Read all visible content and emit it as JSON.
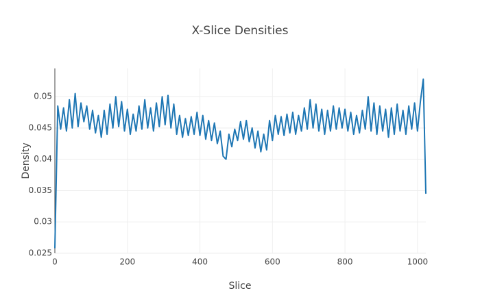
{
  "chart_data": {
    "type": "line",
    "title": "X-Slice Densities",
    "x_label": "Slice",
    "y_label": "Density",
    "x": [
      0,
      8,
      16,
      24,
      32,
      40,
      48,
      56,
      64,
      72,
      80,
      88,
      96,
      104,
      112,
      120,
      128,
      136,
      144,
      152,
      160,
      168,
      176,
      184,
      192,
      200,
      208,
      216,
      224,
      232,
      240,
      248,
      256,
      264,
      272,
      280,
      288,
      296,
      304,
      312,
      320,
      328,
      336,
      344,
      352,
      360,
      368,
      376,
      384,
      392,
      400,
      408,
      416,
      424,
      432,
      440,
      448,
      456,
      464,
      472,
      480,
      488,
      496,
      504,
      512,
      520,
      528,
      536,
      544,
      552,
      560,
      568,
      576,
      584,
      592,
      600,
      608,
      616,
      624,
      632,
      640,
      648,
      656,
      664,
      672,
      680,
      688,
      696,
      704,
      712,
      720,
      728,
      736,
      744,
      752,
      760,
      768,
      776,
      784,
      792,
      800,
      808,
      816,
      824,
      832,
      840,
      848,
      856,
      864,
      872,
      880,
      888,
      896,
      904,
      912,
      920,
      928,
      936,
      944,
      952,
      960,
      968,
      976,
      984,
      992,
      1000,
      1008,
      1016,
      1023
    ],
    "values": [
      0.0258,
      0.0485,
      0.0448,
      0.0482,
      0.0445,
      0.0495,
      0.045,
      0.0505,
      0.0452,
      0.049,
      0.046,
      0.0485,
      0.0448,
      0.0478,
      0.0442,
      0.047,
      0.0435,
      0.0478,
      0.044,
      0.0488,
      0.045,
      0.05,
      0.0452,
      0.0492,
      0.0445,
      0.048,
      0.044,
      0.0472,
      0.0445,
      0.0485,
      0.0448,
      0.0495,
      0.045,
      0.0482,
      0.0445,
      0.049,
      0.0452,
      0.05,
      0.0455,
      0.0502,
      0.045,
      0.0488,
      0.044,
      0.047,
      0.0435,
      0.0465,
      0.0438,
      0.0468,
      0.044,
      0.0475,
      0.0438,
      0.047,
      0.0432,
      0.0462,
      0.043,
      0.0458,
      0.0425,
      0.0445,
      0.0405,
      0.04,
      0.044,
      0.042,
      0.0448,
      0.043,
      0.046,
      0.0432,
      0.0462,
      0.0428,
      0.045,
      0.0418,
      0.0445,
      0.0412,
      0.044,
      0.0415,
      0.0462,
      0.043,
      0.047,
      0.044,
      0.0468,
      0.0438,
      0.0472,
      0.0442,
      0.0475,
      0.044,
      0.047,
      0.0445,
      0.0482,
      0.0448,
      0.0495,
      0.045,
      0.0488,
      0.0445,
      0.048,
      0.044,
      0.0478,
      0.0445,
      0.0485,
      0.0448,
      0.0482,
      0.045,
      0.048,
      0.0445,
      0.0475,
      0.044,
      0.047,
      0.0442,
      0.0478,
      0.0448,
      0.05,
      0.0445,
      0.049,
      0.044,
      0.0485,
      0.0445,
      0.048,
      0.0435,
      0.0482,
      0.044,
      0.0488,
      0.0445,
      0.0478,
      0.044,
      0.0485,
      0.0448,
      0.049,
      0.0445,
      0.0492,
      0.0528,
      0.0345
    ],
    "color": "#1f77b4",
    "xlim": [
      0,
      1023
    ],
    "xticks": [
      0,
      200,
      400,
      600,
      800,
      1000
    ],
    "ylim": [
      0.025,
      0.0545
    ],
    "yticks": [
      0.025,
      0.03,
      0.035,
      0.04,
      0.045,
      0.05
    ],
    "grid": true
  }
}
